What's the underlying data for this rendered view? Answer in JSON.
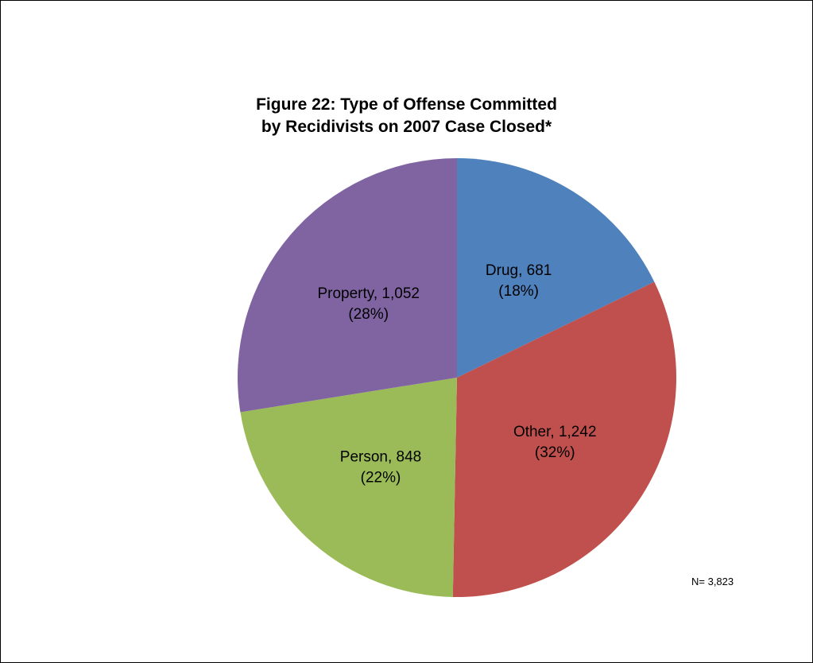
{
  "chart_data": {
    "type": "pie",
    "title": "Figure 22: Type of Offense Committed",
    "subtitle": "by Recidivists on 2007 Case Closed*",
    "slices": [
      {
        "label": "Drug",
        "value": 681,
        "value_text": "681",
        "percent_text": "(18%)",
        "color": "#4F81BD"
      },
      {
        "label": "Other",
        "value": 1242,
        "value_text": "1,242",
        "percent_text": "(32%)",
        "color": "#C0504D"
      },
      {
        "label": "Person",
        "value": 848,
        "value_text": "848",
        "percent_text": "(22%)",
        "color": "#9BBB59"
      },
      {
        "label": "Property",
        "value": 1052,
        "value_text": "1,052",
        "percent_text": "(28%)",
        "color": "#8064A2"
      }
    ],
    "start_angle_deg": 0,
    "direction": "clockwise",
    "legend": "none",
    "note": "N= 3,823"
  }
}
